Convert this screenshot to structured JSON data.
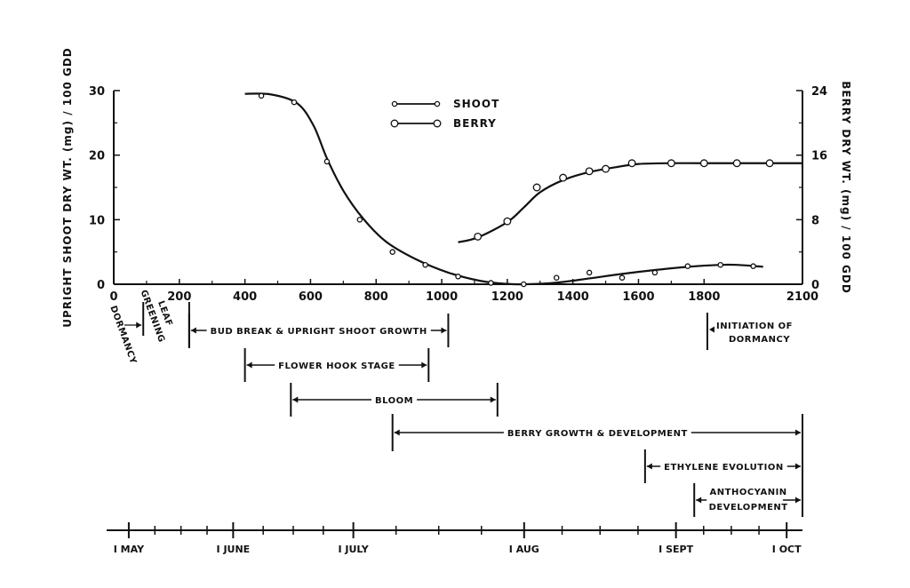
{
  "chart_data": {
    "type": "line",
    "xlabel": "",
    "xlim": [
      0,
      2100
    ],
    "x_ticks": [
      "0",
      "200",
      "400",
      "600",
      "800",
      "1000",
      "1200",
      "1400",
      "1600",
      "1800",
      "2100"
    ],
    "ylabel_left": "UPRIGHT SHOOT DRY WT. (mg) / 100 GDD",
    "ylim_left": [
      0,
      30
    ],
    "y_ticks_left": [
      "0",
      "10",
      "20",
      "30"
    ],
    "ylabel_right": "BERRY DRY WT. (mg) / 100 GDD",
    "ylim_right": [
      0,
      24
    ],
    "y_ticks_right": [
      "0",
      "8",
      "16",
      "24"
    ],
    "legend_position": "top-center",
    "series": [
      {
        "name": "SHOOT",
        "axis": "left",
        "marker": "small-open-circle",
        "points": [
          [
            450,
            29.2
          ],
          [
            550,
            28.2
          ],
          [
            650,
            19
          ],
          [
            750,
            10
          ],
          [
            850,
            5
          ],
          [
            950,
            3
          ],
          [
            1050,
            1.2
          ],
          [
            1150,
            0.2
          ],
          [
            1250,
            0
          ],
          [
            1350,
            1
          ],
          [
            1450,
            1.8
          ],
          [
            1550,
            1
          ],
          [
            1650,
            1.8
          ],
          [
            1750,
            2.8
          ],
          [
            1850,
            3
          ],
          [
            1950,
            2.8
          ]
        ],
        "curve": [
          [
            400,
            29.5
          ],
          [
            480,
            29.4
          ],
          [
            560,
            28.0
          ],
          [
            610,
            24.5
          ],
          [
            650,
            19.5
          ],
          [
            700,
            14.5
          ],
          [
            760,
            10.2
          ],
          [
            830,
            6.6
          ],
          [
            920,
            3.9
          ],
          [
            1020,
            1.8
          ],
          [
            1120,
            0.5
          ],
          [
            1200,
            0.05
          ],
          [
            1260,
            0
          ],
          [
            1350,
            0.25
          ],
          [
            1450,
            0.9
          ],
          [
            1550,
            1.6
          ],
          [
            1650,
            2.2
          ],
          [
            1750,
            2.7
          ],
          [
            1850,
            3.0
          ],
          [
            1900,
            3.0
          ],
          [
            1980,
            2.7
          ]
        ]
      },
      {
        "name": "BERRY",
        "axis": "right",
        "marker": "large-open-circle",
        "points": [
          [
            1110,
            5.9
          ],
          [
            1200,
            7.8
          ],
          [
            1290,
            12
          ],
          [
            1370,
            13.2
          ],
          [
            1450,
            14
          ],
          [
            1500,
            14.3
          ],
          [
            1580,
            15
          ],
          [
            1700,
            15
          ],
          [
            1800,
            15
          ],
          [
            1900,
            15
          ],
          [
            2000,
            15
          ]
        ],
        "curve": [
          [
            1050,
            5.2
          ],
          [
            1110,
            5.8
          ],
          [
            1200,
            7.7
          ],
          [
            1250,
            9.5
          ],
          [
            1300,
            11.4
          ],
          [
            1370,
            12.9
          ],
          [
            1450,
            13.9
          ],
          [
            1530,
            14.5
          ],
          [
            1600,
            14.9
          ],
          [
            1700,
            15.0
          ],
          [
            1800,
            15.0
          ],
          [
            2100,
            15.0
          ]
        ]
      }
    ],
    "stages": [
      {
        "label": "DORMANCY",
        "x_start": 0,
        "x_end": 90
      },
      {
        "label": "LEAF",
        "label2": "GREENING",
        "x_start": 90,
        "x_end": 230
      },
      {
        "label": "BUD BREAK & UPRIGHT SHOOT GROWTH",
        "x_start": 230,
        "x_end": 1020
      },
      {
        "label": "FLOWER HOOK STAGE",
        "x_start": 400,
        "x_end": 960
      },
      {
        "label": "BLOOM",
        "x_start": 540,
        "x_end": 1170
      },
      {
        "label": "BERRY GROWTH & DEVELOPMENT",
        "x_start": 850,
        "x_end": 2100
      },
      {
        "label": "ETHYLENE EVOLUTION",
        "x_start": 1620,
        "x_end": 2100
      },
      {
        "label": "ANTHOCYANIN",
        "label2": "DEVELOPMENT",
        "x_start": 1770,
        "x_end": 2100
      },
      {
        "label": "INITIATION OF",
        "label2": "DORMANCY",
        "x_start": 1810,
        "x_end": 1810
      }
    ],
    "months": [
      {
        "label": "I MAY",
        "x": 70
      },
      {
        "label": "I JUNE",
        "x": 400
      },
      {
        "label": "I JULY",
        "x": 780
      },
      {
        "label": "I AUG",
        "x": 1320
      },
      {
        "label": "I SEPT",
        "x": 1800
      },
      {
        "label": "I OCT",
        "x": 2150
      }
    ],
    "months_axis_extent": [
      0,
      2200
    ]
  }
}
